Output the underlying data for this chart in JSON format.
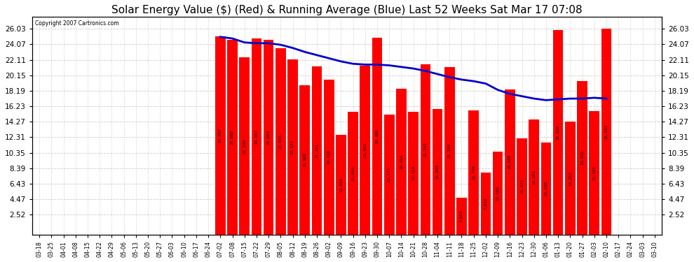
{
  "title": "Solar Energy Value ($) (Red) & Running Average (Blue) Last 52 Weeks Sat Mar 17 07:08",
  "copyright": "Copyright 2007 Cartronics.com",
  "bar_color": "#ff0000",
  "line_color": "#0000cc",
  "background_color": "#ffffff",
  "plot_bg_color": "#ffffff",
  "grid_color": "#cccccc",
  "yticks": [
    2.52,
    4.47,
    6.43,
    8.39,
    10.35,
    12.31,
    14.27,
    16.23,
    18.19,
    20.15,
    22.11,
    24.07,
    26.03
  ],
  "categories": [
    "03-18",
    "03-25",
    "04-01",
    "04-08",
    "04-15",
    "04-22",
    "04-29",
    "05-06",
    "05-13",
    "05-20",
    "05-27",
    "06-03",
    "06-10",
    "06-17",
    "06-24",
    "07-02",
    "07-08",
    "07-15",
    "07-22",
    "07-29",
    "08-05",
    "08-12",
    "08-19",
    "08-26",
    "09-02",
    "09-09",
    "09-16",
    "09-23",
    "09-30",
    "10-07",
    "10-14",
    "10-21",
    "10-28",
    "11-04",
    "11-11",
    "11-18",
    "11-25",
    "12-02",
    "12-09",
    "12-16",
    "12-23",
    "12-30",
    "01-06",
    "01-13",
    "01-20",
    "01-27",
    "02-03",
    "02-10",
    "02-17",
    "02-24",
    "03-03",
    "03-10"
  ],
  "values": [
    0.0,
    0.0,
    0.0,
    0.0,
    0.0,
    0.0,
    0.0,
    0.0,
    0.0,
    0.0,
    0.0,
    0.0,
    0.0,
    0.0,
    0.0,
    25.057,
    24.662,
    22.389,
    24.807,
    24.604,
    23.545,
    22.133,
    18.908,
    21.301,
    19.618,
    12.616,
    15.49,
    21.403,
    24.882,
    15.173,
    18.454,
    15.519,
    21.541,
    15.905,
    21.194,
    4.653,
    15.718,
    7.815,
    10.505,
    18.389,
    12.172,
    14.561,
    11.63,
    25.828,
    14.263,
    19.4,
    15.591,
    26.031,
    0.0,
    0.0,
    0.0,
    0.0
  ],
  "running_avg": [
    0.0,
    0.0,
    0.0,
    0.0,
    0.0,
    0.0,
    0.0,
    0.0,
    0.0,
    0.0,
    0.0,
    0.0,
    0.0,
    0.0,
    0.0,
    25.0,
    24.8,
    24.3,
    24.2,
    24.2,
    24.0,
    23.6,
    23.1,
    22.7,
    22.3,
    21.9,
    21.6,
    21.5,
    21.5,
    21.4,
    21.2,
    21.0,
    20.7,
    20.3,
    19.9,
    19.6,
    19.4,
    19.1,
    18.3,
    17.8,
    17.5,
    17.2,
    17.0,
    17.1,
    17.2,
    17.2,
    17.3,
    17.2,
    0.0,
    0.0,
    0.0,
    0.0
  ],
  "ylim": [
    0,
    27.5
  ],
  "title_fontsize": 11,
  "tick_fontsize": 7.5
}
